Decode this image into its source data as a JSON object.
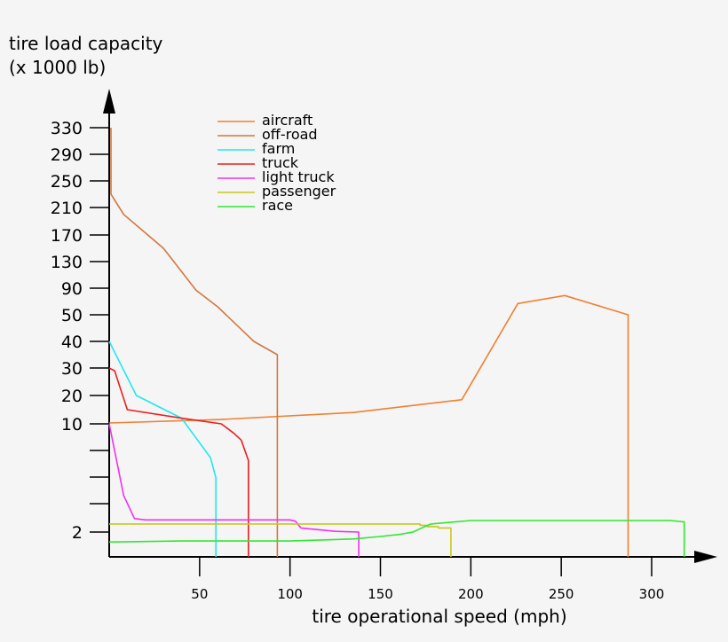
{
  "chart_data": {
    "type": "line",
    "ylabel_line1": "tire load capacity",
    "ylabel_line2": "(x 1000 lb)",
    "xlabel": "tire operational speed (mph)",
    "xlim": [
      0,
      330
    ],
    "x_ticks": [
      50,
      100,
      150,
      200,
      250,
      300
    ],
    "y_tick_labels": [
      "330",
      "290",
      "250",
      "210",
      "170",
      "130",
      "90",
      "50",
      "40",
      "30",
      "20",
      "10",
      "",
      "",
      "",
      "2"
    ],
    "legend_position": "top-center",
    "series": [
      {
        "name": "aircraft",
        "color": "#f08030",
        "points": [
          [
            0,
            10.3
          ],
          [
            60,
            11.5
          ],
          [
            135,
            14
          ],
          [
            195,
            18.5
          ],
          [
            226,
            67
          ],
          [
            252,
            79
          ],
          [
            287,
            50
          ],
          [
            287,
            0.1
          ]
        ]
      },
      {
        "name": "off-road",
        "color": "#d07840",
        "points": [
          [
            1,
            330
          ],
          [
            1,
            230
          ],
          [
            8,
            200
          ],
          [
            30,
            150
          ],
          [
            48,
            87
          ],
          [
            60,
            62
          ],
          [
            80,
            40
          ],
          [
            93,
            35
          ],
          [
            93,
            0.1
          ]
        ]
      },
      {
        "name": "farm",
        "color": "#20e8f0",
        "points": [
          [
            0,
            40
          ],
          [
            15,
            20
          ],
          [
            40,
            12
          ],
          [
            56,
            7.5
          ],
          [
            59,
            6
          ],
          [
            59,
            0.1
          ]
        ]
      },
      {
        "name": "truck",
        "color": "#e82020",
        "points": [
          [
            0,
            30
          ],
          [
            3,
            29
          ],
          [
            10,
            15
          ],
          [
            40,
            12
          ],
          [
            62,
            10
          ],
          [
            69,
            9.3
          ],
          [
            73,
            8.8
          ],
          [
            77,
            7.3
          ],
          [
            77,
            0.1
          ]
        ]
      },
      {
        "name": "light truck",
        "color": "#f030f0",
        "points": [
          [
            0,
            10
          ],
          [
            8,
            4.7
          ],
          [
            14,
            3
          ],
          [
            20,
            2.9
          ],
          [
            40,
            2.9
          ],
          [
            100,
            2.9
          ],
          [
            103,
            2.8
          ],
          [
            106,
            2.3
          ],
          [
            125,
            2.05
          ],
          [
            138,
            2
          ],
          [
            138,
            0.1
          ]
        ]
      },
      {
        "name": "passenger",
        "color": "#c8c820",
        "points": [
          [
            0,
            2.6
          ],
          [
            172,
            2.6
          ],
          [
            172,
            2.5
          ],
          [
            176,
            2.5
          ],
          [
            176,
            2.4
          ],
          [
            182,
            2.4
          ],
          [
            182,
            2.3
          ],
          [
            189,
            2.3
          ],
          [
            189,
            0.1
          ]
        ]
      },
      {
        "name": "race",
        "color": "#30e830",
        "points": [
          [
            0,
            1.6
          ],
          [
            40,
            1.64
          ],
          [
            100,
            1.64
          ],
          [
            135,
            1.72
          ],
          [
            150,
            1.82
          ],
          [
            160,
            1.9
          ],
          [
            168,
            2
          ],
          [
            172,
            2.25
          ],
          [
            178,
            2.6
          ],
          [
            200,
            2.85
          ],
          [
            250,
            2.85
          ],
          [
            310,
            2.85
          ],
          [
            318,
            2.75
          ],
          [
            318,
            0.1
          ]
        ]
      }
    ]
  }
}
